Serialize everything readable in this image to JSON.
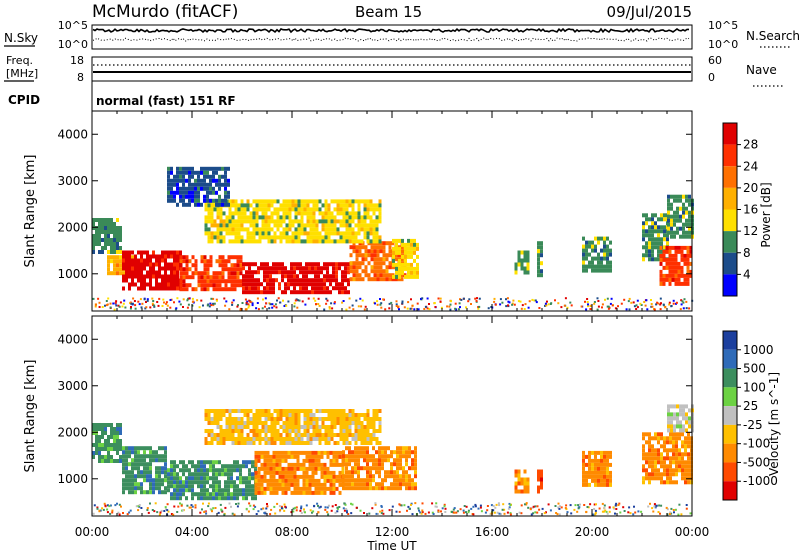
{
  "header": {
    "station": "McMurdo (fitACF)",
    "beam": "Beam 15",
    "date": "09/Jul/2015"
  },
  "status_panels": {
    "nsky_label": "N.Sky",
    "nsky_ticks": [
      "10^5",
      "10^0"
    ],
    "nsearch_label": "N.Search",
    "nsearch_ticks": [
      "10^5",
      "10^0"
    ],
    "freq_label": "Freq.",
    "freq_unit": "[MHz]",
    "freq_ticks": [
      "18",
      "8"
    ],
    "nave_label": "Nave",
    "nave_ticks": [
      "60",
      "0"
    ],
    "cpid_label": "CPID",
    "cpid_text": "normal (fast) 151 RF"
  },
  "chart_data": [
    {
      "type": "heatmap",
      "name": "power",
      "ylabel": "Slant Range [km]",
      "ylim": [
        200,
        4500
      ],
      "yticks": [
        1000,
        2000,
        3000,
        4000
      ],
      "xlim": [
        0,
        24
      ],
      "colorbar": {
        "label": "Power [dB]",
        "ticks": [
          "28",
          "24",
          "20",
          "16",
          "12",
          "8",
          "4"
        ],
        "colors": [
          "#e00000",
          "#ff3000",
          "#ff7000",
          "#ffb000",
          "#ffe000",
          "#3a8a58",
          "#1c4c8a",
          "#0000ff"
        ]
      },
      "echo_regions": [
        {
          "t0": 0.0,
          "t1": 1.2,
          "r0": 1500,
          "r1": 2200,
          "level": 5
        },
        {
          "t0": 0.6,
          "t1": 1.6,
          "r0": 1000,
          "r1": 1400,
          "level": 3
        },
        {
          "t0": 1.2,
          "t1": 3.5,
          "r0": 650,
          "r1": 1500,
          "level": 0
        },
        {
          "t0": 3.5,
          "t1": 6.0,
          "r0": 700,
          "r1": 1400,
          "level": 1
        },
        {
          "t0": 6.0,
          "t1": 10.3,
          "r0": 600,
          "r1": 1250,
          "level": 0
        },
        {
          "t0": 10.3,
          "t1": 12.5,
          "r0": 900,
          "r1": 1700,
          "level": 2
        },
        {
          "t0": 12.0,
          "t1": 13.0,
          "r0": 900,
          "r1": 1750,
          "level": 4
        },
        {
          "t0": 4.5,
          "t1": 11.5,
          "r0": 1700,
          "r1": 2600,
          "level": 4
        },
        {
          "t0": 3.0,
          "t1": 5.5,
          "r0": 2500,
          "r1": 3300,
          "level": 6
        },
        {
          "t0": 16.9,
          "t1": 17.4,
          "r0": 1000,
          "r1": 1500,
          "level": 5
        },
        {
          "t0": 17.8,
          "t1": 18.0,
          "r0": 1000,
          "r1": 1700,
          "level": 5
        },
        {
          "t0": 19.6,
          "t1": 20.8,
          "r0": 1050,
          "r1": 1800,
          "level": 5
        },
        {
          "t0": 22.0,
          "t1": 23.0,
          "r0": 1300,
          "r1": 2300,
          "level": 5
        },
        {
          "t0": 22.7,
          "t1": 24.0,
          "r0": 800,
          "r1": 1600,
          "level": 1
        },
        {
          "t0": 23.0,
          "t1": 24.0,
          "r0": 1800,
          "r1": 2700,
          "level": 5
        }
      ]
    },
    {
      "type": "heatmap",
      "name": "velocity",
      "ylabel": "Slant Range [km]",
      "ylim": [
        200,
        4500
      ],
      "yticks": [
        1000,
        2000,
        3000,
        4000
      ],
      "xlim": [
        0,
        24
      ],
      "xticks": [
        "00:00",
        "04:00",
        "08:00",
        "12:00",
        "16:00",
        "20:00",
        "00:00"
      ],
      "xlabel": "Time UT",
      "colorbar": {
        "label": "Velocity [m s^-1]",
        "ticks": [
          "1000",
          "500",
          "100",
          "25",
          "-25",
          "-100",
          "-500",
          "-1000"
        ],
        "colors": [
          "#1c3f9e",
          "#2f6bb8",
          "#3c8e5e",
          "#6cd243",
          "#c0c0c0",
          "#ffc000",
          "#ff8a00",
          "#ff4a00",
          "#e00000"
        ]
      },
      "echo_regions": [
        {
          "t0": 0.0,
          "t1": 1.2,
          "r0": 1400,
          "r1": 2200,
          "level": 2
        },
        {
          "t0": 1.2,
          "t1": 3.0,
          "r0": 700,
          "r1": 1700,
          "level": 2
        },
        {
          "t0": 3.0,
          "t1": 6.5,
          "r0": 600,
          "r1": 1400,
          "level": 2
        },
        {
          "t0": 6.5,
          "t1": 10.0,
          "r0": 700,
          "r1": 1600,
          "level": 6
        },
        {
          "t0": 10.0,
          "t1": 13.0,
          "r0": 800,
          "r1": 1700,
          "level": 6
        },
        {
          "t0": 4.5,
          "t1": 11.5,
          "r0": 1800,
          "r1": 2500,
          "level": 5
        },
        {
          "t0": 16.9,
          "t1": 17.4,
          "r0": 700,
          "r1": 1200,
          "level": 6
        },
        {
          "t0": 17.8,
          "t1": 18.0,
          "r0": 700,
          "r1": 1200,
          "level": 7
        },
        {
          "t0": 19.6,
          "t1": 20.8,
          "r0": 900,
          "r1": 1600,
          "level": 6
        },
        {
          "t0": 22.0,
          "t1": 24.0,
          "r0": 900,
          "r1": 2000,
          "level": 6
        },
        {
          "t0": 23.0,
          "t1": 24.0,
          "r0": 2000,
          "r1": 2600,
          "level": 4
        }
      ]
    }
  ]
}
